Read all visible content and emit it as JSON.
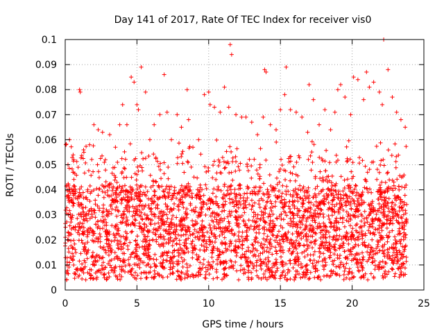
{
  "chart_data": {
    "type": "scatter",
    "title": "Day 141 of 2017, Rate Of TEC Index for receiver vis0",
    "xlabel": "GPS time / hours",
    "ylabel": "ROTI / TECUs",
    "xlim": [
      0,
      25
    ],
    "ylim": [
      0,
      0.1
    ],
    "x_ticks": [
      0,
      5,
      10,
      15,
      20,
      25
    ],
    "x_tick_labels": [
      "0",
      "5",
      "10",
      "15",
      "20",
      "25"
    ],
    "y_ticks": [
      0,
      0.01,
      0.02,
      0.03,
      0.04,
      0.05,
      0.06,
      0.07,
      0.08,
      0.09,
      0.1
    ],
    "y_tick_labels": [
      "0",
      "0.01",
      "0.02",
      "0.03",
      "0.04",
      "0.05",
      "0.06",
      "0.07",
      "0.08",
      "0.09",
      "0.1"
    ],
    "grid": true,
    "marker": "+",
    "color": "#ff0000",
    "series": [
      {
        "name": "ROTI",
        "description_points": "dense scatter 0 to 23.8 h, bulk 0.003-0.05",
        "x": [
          0.05,
          0.3,
          0.6,
          0.9,
          1.0,
          1.05,
          1.3,
          1.7,
          2.0,
          2.3,
          2.6,
          2.8,
          3.1,
          3.5,
          3.8,
          4.0,
          4.3,
          4.6,
          4.8,
          5.0,
          5.1,
          5.3,
          5.6,
          5.9,
          6.2,
          6.6,
          6.9,
          7.1,
          7.4,
          7.8,
          8.1,
          8.5,
          8.6,
          8.9,
          9.3,
          9.7,
          10.0,
          10.1,
          10.4,
          10.8,
          11.1,
          11.4,
          11.5,
          11.6,
          11.9,
          12.3,
          12.6,
          13.0,
          13.4,
          13.8,
          13.9,
          14.0,
          14.3,
          14.7,
          15.0,
          15.3,
          15.4,
          15.7,
          16.1,
          16.5,
          16.9,
          17.0,
          17.3,
          17.7,
          18.1,
          18.5,
          18.8,
          19.0,
          19.2,
          19.5,
          19.9,
          20.1,
          20.4,
          20.8,
          21.0,
          21.2,
          21.5,
          21.9,
          22.1,
          22.2,
          22.5,
          22.8,
          23.1,
          23.4,
          23.7
        ],
        "y": [
          0.058,
          0.06,
          0.052,
          0.049,
          0.08,
          0.079,
          0.055,
          0.058,
          0.066,
          0.064,
          0.063,
          0.052,
          0.062,
          0.057,
          0.066,
          0.074,
          0.066,
          0.085,
          0.083,
          0.074,
          0.072,
          0.089,
          0.079,
          0.06,
          0.066,
          0.07,
          0.086,
          0.071,
          0.06,
          0.07,
          0.065,
          0.08,
          0.068,
          0.057,
          0.06,
          0.078,
          0.079,
          0.074,
          0.073,
          0.071,
          0.081,
          0.073,
          0.098,
          0.094,
          0.07,
          0.069,
          0.069,
          0.067,
          0.062,
          0.069,
          0.088,
          0.087,
          0.066,
          0.064,
          0.072,
          0.078,
          0.089,
          0.072,
          0.071,
          0.069,
          0.063,
          0.082,
          0.076,
          0.066,
          0.072,
          0.064,
          0.071,
          0.08,
          0.082,
          0.077,
          0.07,
          0.085,
          0.084,
          0.076,
          0.087,
          0.081,
          0.083,
          0.079,
          0.074,
          0.1,
          0.088,
          0.077,
          0.071,
          0.068,
          0.065
        ]
      }
    ]
  }
}
